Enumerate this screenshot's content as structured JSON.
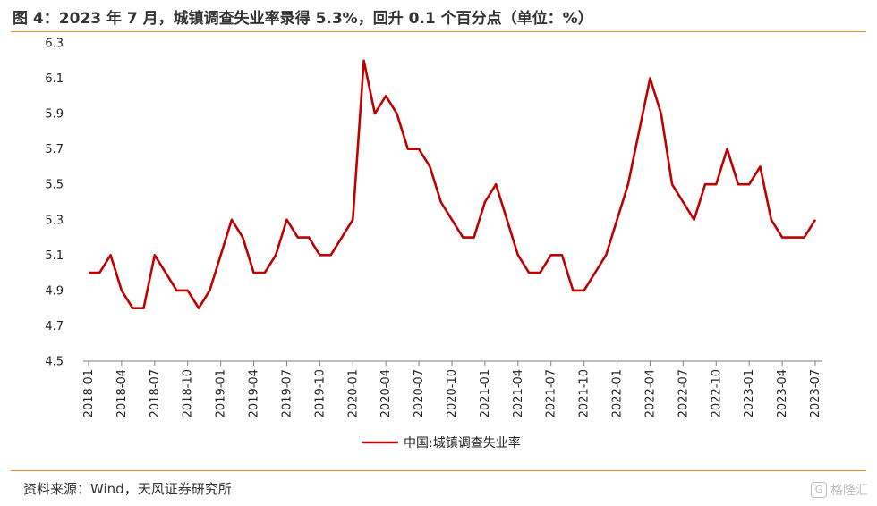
{
  "header": {
    "title": "图 4：2023 年 7 月，城镇调查失业率录得 5.3%，回升 0.1 个百分点（单位：%）"
  },
  "footer": {
    "source": "资料来源：Wind，天风证券研究所",
    "watermark": "格隆汇"
  },
  "chart_data": {
    "type": "line",
    "ylim": [
      4.5,
      6.3
    ],
    "yticks": [
      4.5,
      4.7,
      4.9,
      5.1,
      5.3,
      5.5,
      5.7,
      5.9,
      6.1,
      6.3
    ],
    "ytick_labels": [
      "4.5",
      "4.7",
      "4.9",
      "5.1",
      "5.3",
      "5.5",
      "5.7",
      "5.9",
      "6.1",
      "6.3"
    ],
    "xtick_labels": [
      "2018-01",
      "2018-04",
      "2018-07",
      "2018-10",
      "2019-01",
      "2019-04",
      "2019-07",
      "2019-10",
      "2020-01",
      "2020-04",
      "2020-07",
      "2020-10",
      "2021-01",
      "2021-04",
      "2021-07",
      "2021-10",
      "2022-01",
      "2022-04",
      "2022-07",
      "2022-10",
      "2023-01",
      "2023-04",
      "2023-07"
    ],
    "grid": false,
    "legend": "bottom-center",
    "color": "#c00000",
    "series": [
      {
        "name": "中国:城镇调查失业率",
        "x": [
          "2018-01",
          "2018-02",
          "2018-03",
          "2018-04",
          "2018-05",
          "2018-06",
          "2018-07",
          "2018-08",
          "2018-09",
          "2018-10",
          "2018-11",
          "2018-12",
          "2019-01",
          "2019-02",
          "2019-03",
          "2019-04",
          "2019-05",
          "2019-06",
          "2019-07",
          "2019-08",
          "2019-09",
          "2019-10",
          "2019-11",
          "2019-12",
          "2020-01",
          "2020-02",
          "2020-03",
          "2020-04",
          "2020-05",
          "2020-06",
          "2020-07",
          "2020-08",
          "2020-09",
          "2020-10",
          "2020-11",
          "2020-12",
          "2021-01",
          "2021-02",
          "2021-03",
          "2021-04",
          "2021-05",
          "2021-06",
          "2021-07",
          "2021-08",
          "2021-09",
          "2021-10",
          "2021-11",
          "2021-12",
          "2022-01",
          "2022-02",
          "2022-03",
          "2022-04",
          "2022-05",
          "2022-06",
          "2022-07",
          "2022-08",
          "2022-09",
          "2022-10",
          "2022-11",
          "2022-12",
          "2023-01",
          "2023-02",
          "2023-03",
          "2023-04",
          "2023-05",
          "2023-06",
          "2023-07"
        ],
        "values": [
          5.0,
          5.0,
          5.1,
          4.9,
          4.8,
          4.8,
          5.1,
          5.0,
          4.9,
          4.9,
          4.8,
          4.9,
          5.1,
          5.3,
          5.2,
          5.0,
          5.0,
          5.1,
          5.3,
          5.2,
          5.2,
          5.1,
          5.1,
          5.2,
          5.3,
          6.2,
          5.9,
          6.0,
          5.9,
          5.7,
          5.7,
          5.6,
          5.4,
          5.3,
          5.2,
          5.2,
          5.4,
          5.5,
          5.3,
          5.1,
          5.0,
          5.0,
          5.1,
          5.1,
          4.9,
          4.9,
          5.0,
          5.1,
          5.3,
          5.5,
          5.8,
          6.1,
          5.9,
          5.5,
          5.4,
          5.3,
          5.5,
          5.5,
          5.7,
          5.5,
          5.5,
          5.6,
          5.3,
          5.2,
          5.2,
          5.2,
          5.3
        ]
      }
    ]
  }
}
